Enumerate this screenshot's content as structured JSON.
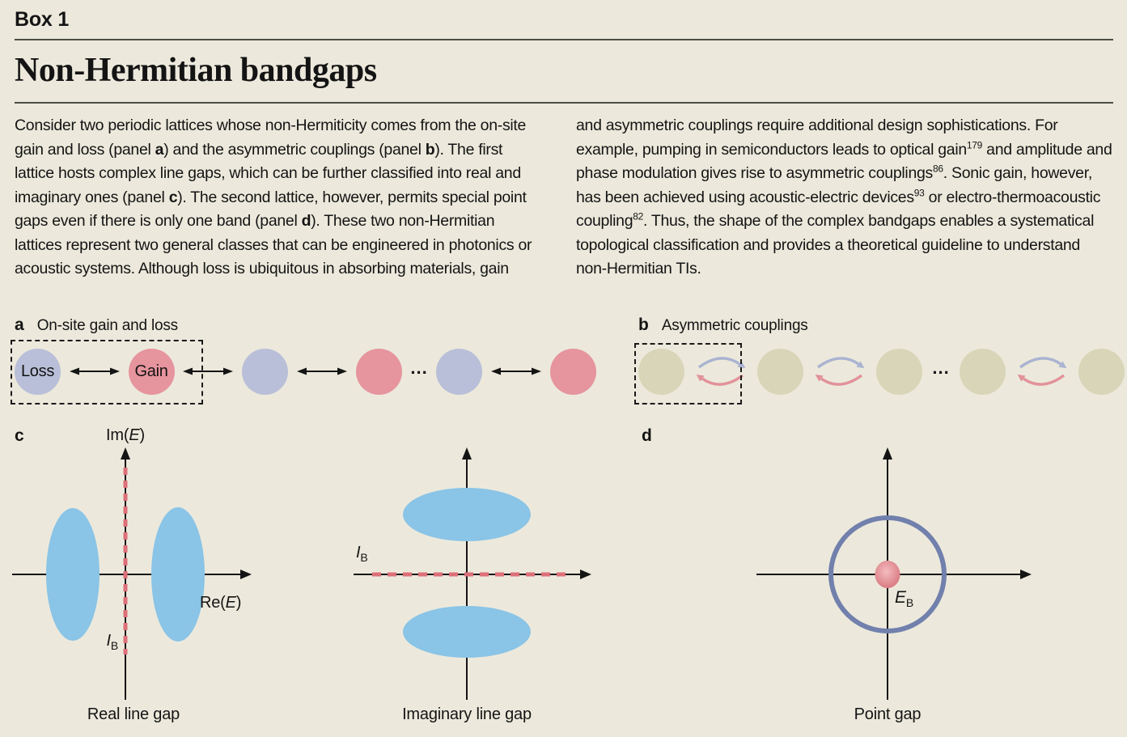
{
  "colors": {
    "background": "#ece9dc",
    "loss_site": "#b9bfd8",
    "gain_site": "#e6949e",
    "neutral_site": "#d8d5b8",
    "band_blue": "#8ac4e6",
    "gap_red": "#dd6f79",
    "ring_blue": "#7180ac",
    "dot_center": "#f3bcbf",
    "dot_edge": "#d8767e",
    "couple_blue": "#aab3d1",
    "couple_red": "#e2929a",
    "axis_black": "#141414"
  },
  "header": {
    "kicker": "Box 1",
    "title": "Non-Hermitian bandgaps"
  },
  "body": {
    "left_column": [
      {
        "t": "Consider two periodic lattices whose non-Hermiticity comes from the on-site gain and loss (panel "
      },
      {
        "t": "a",
        "s": "b"
      },
      {
        "t": ") and the asymmetric couplings (panel "
      },
      {
        "t": "b",
        "s": "b"
      },
      {
        "t": "). The first lattice hosts complex line gaps, which can be further classified into real and imaginary ones (panel "
      },
      {
        "t": "c",
        "s": "b"
      },
      {
        "t": "). The second lattice, however, permits special point gaps even if there is only one band (panel "
      },
      {
        "t": "d",
        "s": "b"
      },
      {
        "t": "). These two non-Hermitian lattices represent two general classes that can be engineered in photonics or acoustic systems. Although loss is ubiquitous in absorbing materials, gain"
      }
    ],
    "right_column": [
      {
        "t": "and asymmetric couplings require additional design sophistications. For example, pumping in semiconductors leads to optical gain"
      },
      {
        "t": "179",
        "s": "sup"
      },
      {
        "t": " and amplitude and phase modulation gives rise to asymmetric couplings"
      },
      {
        "t": "86",
        "s": "sup"
      },
      {
        "t": ". Sonic gain, however, has been achieved using acoustic-electric devices"
      },
      {
        "t": "93",
        "s": "sup"
      },
      {
        "t": " or electro-thermoacoustic coupling"
      },
      {
        "t": "82",
        "s": "sup"
      },
      {
        "t": ". Thus, the shape of the complex bandgaps enables a systematical topological classification and provides a theoretical guideline to understand non-Hermitian TIs."
      }
    ]
  },
  "panels": {
    "a": {
      "letter": "a",
      "title": "On-site gain and loss",
      "sequence": [
        {
          "type": "site",
          "variant": "loss",
          "label": "Loss"
        },
        {
          "type": "arrow"
        },
        {
          "type": "site",
          "variant": "gain",
          "label": "Gain"
        },
        {
          "type": "arrow"
        },
        {
          "type": "site",
          "variant": "loss"
        },
        {
          "type": "arrow"
        },
        {
          "type": "site",
          "variant": "gain"
        },
        {
          "type": "dots",
          "label": "..."
        },
        {
          "type": "site",
          "variant": "loss"
        },
        {
          "type": "arrow"
        },
        {
          "type": "site",
          "variant": "gain"
        }
      ]
    },
    "b": {
      "letter": "b",
      "title": "Asymmetric couplings",
      "sequence": [
        {
          "type": "site",
          "variant": "neutral"
        },
        {
          "type": "couple"
        },
        {
          "type": "site",
          "variant": "neutral"
        },
        {
          "type": "couple"
        },
        {
          "type": "site",
          "variant": "neutral"
        },
        {
          "type": "dots",
          "label": "..."
        },
        {
          "type": "site",
          "variant": "neutral"
        },
        {
          "type": "couple"
        },
        {
          "type": "site",
          "variant": "neutral"
        }
      ]
    },
    "c": {
      "letter": "c",
      "real_plot": {
        "ylabel": [
          {
            "t": "Im("
          },
          {
            "t": "E",
            "s": "i"
          },
          {
            "t": ")"
          }
        ],
        "xlabel": [
          {
            "t": "Re("
          },
          {
            "t": "E",
            "s": "i"
          },
          {
            "t": ")"
          }
        ],
        "gap_label": [
          {
            "t": "I",
            "s": "i"
          },
          {
            "t": "B",
            "s": "sub"
          }
        ],
        "caption": "Real line gap"
      },
      "imag_plot": {
        "gap_label": [
          {
            "t": "I",
            "s": "i"
          },
          {
            "t": "B",
            "s": "sub"
          }
        ],
        "caption": "Imaginary line gap"
      }
    },
    "d": {
      "letter": "d",
      "point_plot": {
        "center_label": [
          {
            "t": "E",
            "s": "i"
          },
          {
            "t": "B",
            "s": "sub"
          }
        ],
        "caption": "Point gap"
      }
    }
  }
}
